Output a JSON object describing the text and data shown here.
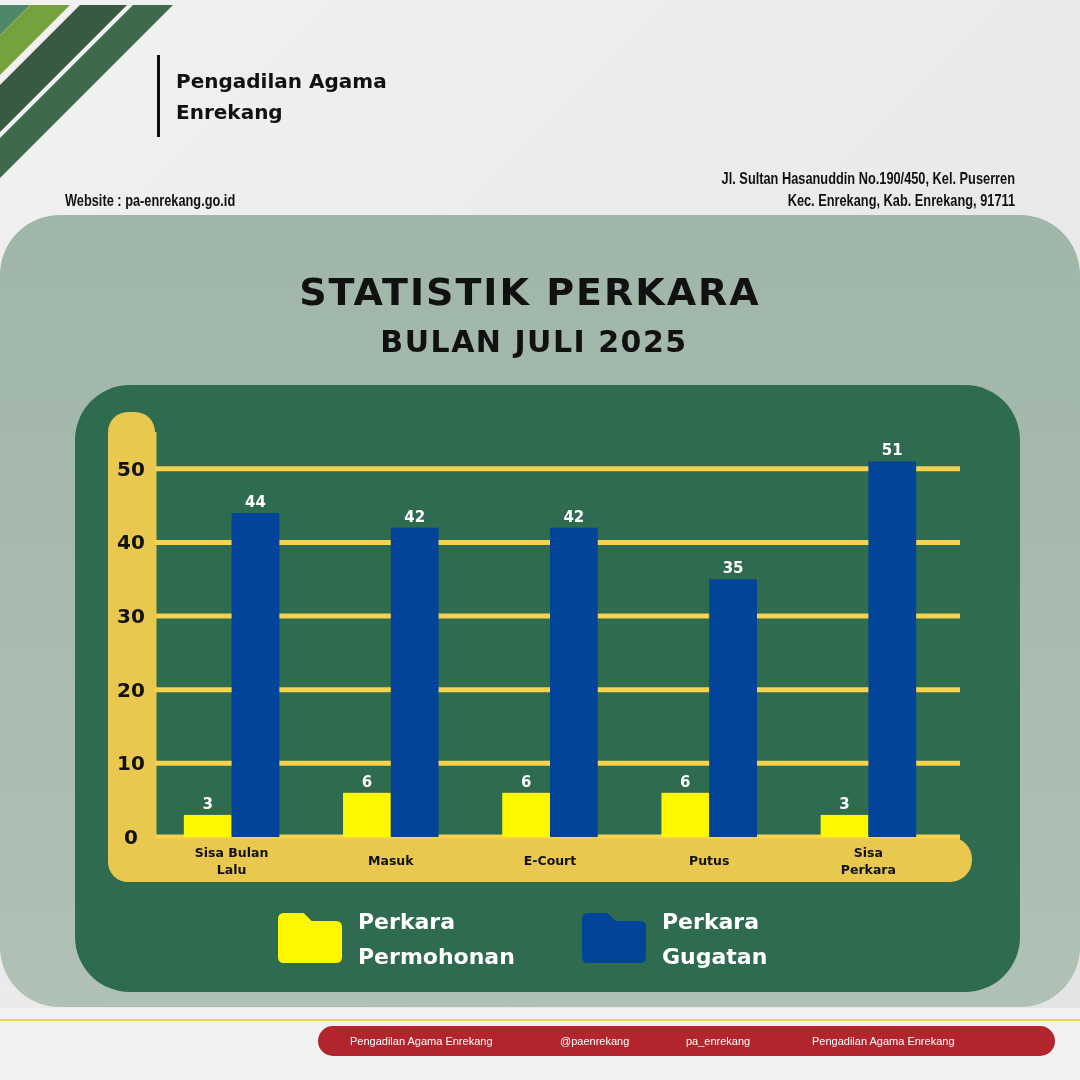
{
  "chart_data": {
    "type": "bar",
    "title": "STATISTIK PERKARA",
    "subtitle": "BULAN JULI 2025",
    "categories": [
      "Sisa Bulan Lalu",
      "Masuk",
      "E-Court",
      "Putus",
      "Sisa Perkara"
    ],
    "series": [
      {
        "name": "Perkara Permohonan",
        "color": "#fff700",
        "values": [
          3,
          6,
          6,
          6,
          3
        ]
      },
      {
        "name": "Perkara Gugatan",
        "color": "#02449a",
        "values": [
          44,
          42,
          42,
          35,
          51
        ]
      }
    ],
    "ylim": [
      0,
      55
    ],
    "yticks": [
      0,
      10,
      20,
      30,
      40,
      50
    ],
    "grid": "y",
    "legend": "bottom",
    "data_labels": true,
    "annotations": [
      "Pengadilan Agama Enrekang",
      "Website : pa-enrekang.go.id",
      "Jl. Sultan Hasanuddin No.190/450, Kel. Puserren",
      "Kec. Enrekang, Kab. Enrekang, 91711",
      "Pengadilan Agama Enrekang",
      "@paenrekang",
      "pa_enrekang",
      "Pengadilan Agama Enrekang"
    ]
  }
}
